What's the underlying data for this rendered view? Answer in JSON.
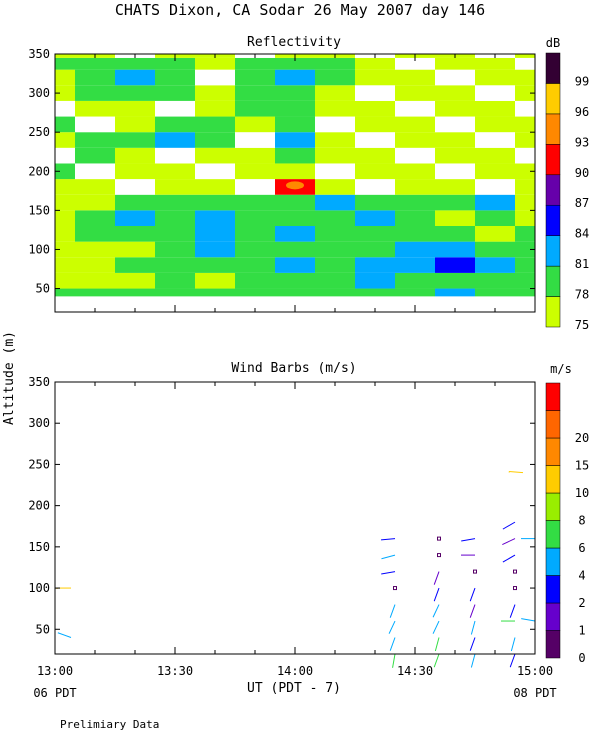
{
  "header": {
    "title": "CHATS Dixon, CA  Sodar  26 May 2007  day 146"
  },
  "footer": {
    "note": "Prelimiary Data"
  },
  "chart_data": [
    {
      "type": "heatmap",
      "title": "Reflectivity",
      "ylabel": "Altitude (m)",
      "ylim": [
        20,
        350
      ],
      "yticks": [
        50,
        100,
        150,
        200,
        250,
        300,
        350
      ],
      "xlim": [
        "13:00",
        "15:00"
      ],
      "colorbar": {
        "unit": "dB",
        "levels": [
          {
            "label": "75",
            "color": "#ccff00"
          },
          {
            "label": "78",
            "color": "#33dd44"
          },
          {
            "label": "81",
            "color": "#00aaff"
          },
          {
            "label": "84",
            "color": "#0000ff"
          },
          {
            "label": "87",
            "color": "#6600aa"
          },
          {
            "label": "90",
            "color": "#ff0000"
          },
          {
            "label": "93",
            "color": "#ff8800"
          },
          {
            "label": "96",
            "color": "#ffcc00"
          },
          {
            "label": "99",
            "color": "#330033"
          }
        ]
      },
      "x": [
        "13:00",
        "13:10",
        "13:20",
        "13:30",
        "13:40",
        "13:50",
        "14:00",
        "14:10",
        "14:20",
        "14:30",
        "14:40",
        "14:50",
        "15:00"
      ],
      "y": [
        40,
        60,
        80,
        100,
        120,
        140,
        160,
        180,
        200,
        220,
        240,
        260,
        280,
        300,
        320,
        340,
        350
      ],
      "z": [
        [
          78,
          78,
          78,
          78,
          78,
          78,
          78,
          78,
          78,
          78,
          81,
          78,
          78
        ],
        [
          75,
          75,
          75,
          78,
          75,
          78,
          78,
          78,
          81,
          78,
          78,
          78,
          78
        ],
        [
          75,
          75,
          78,
          78,
          78,
          78,
          81,
          78,
          81,
          81,
          84,
          81,
          78
        ],
        [
          75,
          75,
          75,
          78,
          81,
          78,
          78,
          78,
          78,
          81,
          81,
          78,
          78
        ],
        [
          75,
          78,
          78,
          78,
          81,
          78,
          81,
          78,
          78,
          78,
          78,
          75,
          78
        ],
        [
          75,
          78,
          81,
          78,
          81,
          78,
          78,
          78,
          81,
          78,
          75,
          78,
          75
        ],
        [
          75,
          75,
          78,
          78,
          78,
          78,
          78,
          81,
          78,
          78,
          78,
          81,
          75
        ],
        [
          75,
          75,
          75,
          75,
          75,
          75,
          90,
          75,
          75,
          75,
          75,
          75,
          75
        ],
        [
          78,
          75,
          75,
          75,
          75,
          75,
          75,
          75,
          75,
          75,
          75,
          75,
          75
        ],
        [
          75,
          78,
          75,
          75,
          75,
          75,
          78,
          75,
          75,
          75,
          75,
          75,
          75
        ],
        [
          75,
          78,
          78,
          81,
          78,
          75,
          81,
          75,
          75,
          75,
          75,
          75,
          75
        ],
        [
          78,
          75,
          75,
          78,
          78,
          75,
          78,
          75,
          75,
          75,
          75,
          75,
          75
        ],
        [
          75,
          75,
          75,
          75,
          75,
          78,
          78,
          75,
          75,
          75,
          75,
          75,
          75
        ],
        [
          75,
          78,
          78,
          78,
          75,
          78,
          78,
          75,
          75,
          75,
          75,
          75,
          75
        ],
        [
          75,
          78,
          81,
          78,
          75,
          78,
          81,
          78,
          75,
          75,
          75,
          75,
          75
        ],
        [
          78,
          78,
          78,
          78,
          75,
          78,
          78,
          78,
          75,
          75,
          75,
          75,
          75
        ],
        [
          75,
          75,
          75,
          75,
          75,
          75,
          75,
          75,
          75,
          75,
          75,
          75,
          75
        ]
      ]
    },
    {
      "type": "scatter",
      "title": "Wind Barbs (m/s)",
      "ylabel": "Altitude (m)",
      "xlabel": "UT  (PDT - 7)",
      "ylim": [
        20,
        350
      ],
      "yticks": [
        50,
        100,
        150,
        200,
        250,
        300,
        350
      ],
      "xticks": [
        "13:00",
        "13:30",
        "14:00",
        "14:30",
        "15:00"
      ],
      "xsublabels": {
        "left": "06 PDT",
        "right": "08 PDT"
      },
      "colorbar": {
        "unit": "m/s",
        "levels": [
          {
            "label": "0",
            "color": "#550066"
          },
          {
            "label": "1",
            "color": "#6600cc"
          },
          {
            "label": "2",
            "color": "#0000ff"
          },
          {
            "label": "4",
            "color": "#00aaff"
          },
          {
            "label": "6",
            "color": "#33dd44"
          },
          {
            "label": "8",
            "color": "#99ee00"
          },
          {
            "label": "10",
            "color": "#ffcc00"
          },
          {
            "label": "15",
            "color": "#ff8800"
          },
          {
            "label": "20",
            "color": "#ff6600"
          },
          {
            "label": "",
            "color": "#ff0000"
          }
        ]
      },
      "barbs": [
        {
          "t": "13:04",
          "alt": 40,
          "speed": 4,
          "dir": 290
        },
        {
          "t": "13:04",
          "alt": 100,
          "speed": 10,
          "dir": 270
        },
        {
          "t": "14:25",
          "alt": 160,
          "speed": 2,
          "dir": 265
        },
        {
          "t": "14:25",
          "alt": 140,
          "speed": 4,
          "dir": 255
        },
        {
          "t": "14:25",
          "alt": 120,
          "speed": 2,
          "dir": 260
        },
        {
          "t": "14:25",
          "alt": 100,
          "speed": 0,
          "dir": 0
        },
        {
          "t": "14:25",
          "alt": 80,
          "speed": 4,
          "dir": 200
        },
        {
          "t": "14:25",
          "alt": 60,
          "speed": 4,
          "dir": 205
        },
        {
          "t": "14:25",
          "alt": 40,
          "speed": 4,
          "dir": 200
        },
        {
          "t": "14:25",
          "alt": 20,
          "speed": 6,
          "dir": 190
        },
        {
          "t": "14:36",
          "alt": 160,
          "speed": 0,
          "dir": 0
        },
        {
          "t": "14:36",
          "alt": 140,
          "speed": 0,
          "dir": 0
        },
        {
          "t": "14:36",
          "alt": 120,
          "speed": 1,
          "dir": 200
        },
        {
          "t": "14:36",
          "alt": 100,
          "speed": 2,
          "dir": 200
        },
        {
          "t": "14:36",
          "alt": 80,
          "speed": 4,
          "dir": 205
        },
        {
          "t": "14:36",
          "alt": 60,
          "speed": 4,
          "dir": 205
        },
        {
          "t": "14:36",
          "alt": 40,
          "speed": 6,
          "dir": 195
        },
        {
          "t": "14:36",
          "alt": 20,
          "speed": 6,
          "dir": 200
        },
        {
          "t": "14:45",
          "alt": 160,
          "speed": 2,
          "dir": 260
        },
        {
          "t": "14:45",
          "alt": 140,
          "speed": 1,
          "dir": 270
        },
        {
          "t": "14:45",
          "alt": 120,
          "speed": 0,
          "dir": 0
        },
        {
          "t": "14:45",
          "alt": 100,
          "speed": 2,
          "dir": 200
        },
        {
          "t": "14:45",
          "alt": 80,
          "speed": 1,
          "dir": 200
        },
        {
          "t": "14:45",
          "alt": 60,
          "speed": 4,
          "dir": 195
        },
        {
          "t": "14:45",
          "alt": 40,
          "speed": 2,
          "dir": 200
        },
        {
          "t": "14:45",
          "alt": 20,
          "speed": 4,
          "dir": 195
        },
        {
          "t": "14:55",
          "alt": 180,
          "speed": 2,
          "dir": 240
        },
        {
          "t": "14:55",
          "alt": 160,
          "speed": 1,
          "dir": 245
        },
        {
          "t": "14:55",
          "alt": 140,
          "speed": 2,
          "dir": 240
        },
        {
          "t": "14:55",
          "alt": 120,
          "speed": 0,
          "dir": 0
        },
        {
          "t": "14:55",
          "alt": 100,
          "speed": 0,
          "dir": 0
        },
        {
          "t": "14:55",
          "alt": 80,
          "speed": 2,
          "dir": 200
        },
        {
          "t": "14:55",
          "alt": 60,
          "speed": 6,
          "dir": 270
        },
        {
          "t": "14:55",
          "alt": 40,
          "speed": 4,
          "dir": 195
        },
        {
          "t": "14:55",
          "alt": 20,
          "speed": 2,
          "dir": 200
        },
        {
          "t": "14:57",
          "alt": 240,
          "speed": 10,
          "dir": 275
        },
        {
          "t": "15:00",
          "alt": 160,
          "speed": 4,
          "dir": 270
        },
        {
          "t": "15:00",
          "alt": 60,
          "speed": 4,
          "dir": 280
        }
      ]
    }
  ]
}
